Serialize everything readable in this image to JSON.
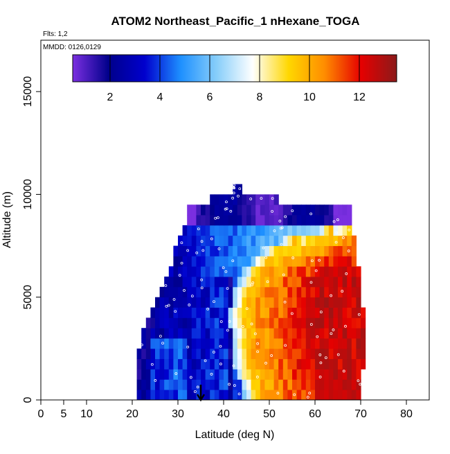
{
  "chart_data": {
    "type": "heatmap",
    "title": "ATOM2 Northeast_Pacific_1 nHexane_TOGA",
    "flights_label": "Flts: 1,2",
    "mmdd_label": "MMDD: 0126,0129",
    "xlabel": "Latitude (deg N)",
    "ylabel": "Altitude (m)",
    "xlim": [
      0,
      85
    ],
    "ylim": [
      0,
      17500
    ],
    "x_ticks": [
      0,
      5,
      10,
      20,
      30,
      40,
      50,
      60,
      70,
      80
    ],
    "y_ticks": [
      0,
      5000,
      10000,
      15000
    ],
    "colorbar": {
      "range": [
        0.5,
        13.5
      ],
      "ticks": [
        2,
        4,
        6,
        8,
        10,
        12
      ],
      "stops": [
        "#7B2FE0",
        "#00008B",
        "#0000CD",
        "#1E90FF",
        "#87CEFA",
        "#FFFFFF",
        "#FFD700",
        "#FF8C00",
        "#E60000",
        "#8B1A1A"
      ]
    },
    "marker_latitude": 35,
    "bands": [
      {
        "alt": 250,
        "lat": [
          21,
          70
        ],
        "edge": 46.0
      },
      {
        "alt": 750,
        "lat": [
          21,
          70
        ],
        "edge": 45.5
      },
      {
        "alt": 1250,
        "lat": [
          21,
          70
        ],
        "edge": 44.5
      },
      {
        "alt": 1750,
        "lat": [
          21,
          71
        ],
        "edge": 44.0
      },
      {
        "alt": 2250,
        "lat": [
          21,
          71
        ],
        "edge": 44.0
      },
      {
        "alt": 2750,
        "lat": [
          22,
          71
        ],
        "edge": 43.5
      },
      {
        "alt": 3250,
        "lat": [
          22,
          71
        ],
        "edge": 43.5
      },
      {
        "alt": 3750,
        "lat": [
          23,
          71
        ],
        "edge": 43.0
      },
      {
        "alt": 4250,
        "lat": [
          24,
          71
        ],
        "edge": 43.0
      },
      {
        "alt": 4750,
        "lat": [
          25,
          70
        ],
        "edge": 43.5
      },
      {
        "alt": 5250,
        "lat": [
          26,
          70
        ],
        "edge": 44.0
      },
      {
        "alt": 5750,
        "lat": [
          27,
          70
        ],
        "edge": 45.0
      },
      {
        "alt": 6250,
        "lat": [
          28,
          70
        ],
        "edge": 46.0
      },
      {
        "alt": 6750,
        "lat": [
          29,
          69
        ],
        "edge": 48.0
      },
      {
        "alt": 7250,
        "lat": [
          29,
          69
        ],
        "edge": 50.0
      },
      {
        "alt": 7750,
        "lat": [
          30,
          69
        ],
        "edge": 54.0
      },
      {
        "alt": 8250,
        "lat": [
          31,
          68
        ],
        "edge": 62.0
      },
      {
        "alt": 8750,
        "lat": [
          32,
          68
        ],
        "edge": 99
      },
      {
        "alt": 9250,
        "lat": [
          32,
          68
        ],
        "edge": 99
      },
      {
        "alt": 9750,
        "lat": [
          37,
          52
        ],
        "edge": 99
      },
      {
        "alt": 10250,
        "lat": [
          42,
          44
        ],
        "edge": 99
      }
    ]
  }
}
